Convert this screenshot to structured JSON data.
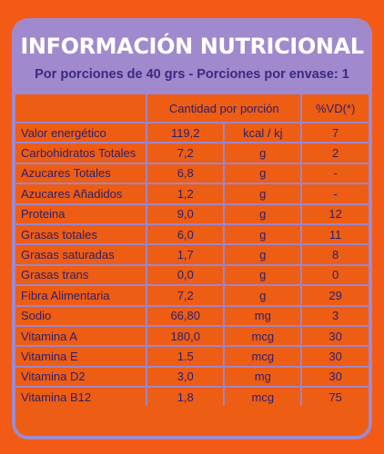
{
  "header": {
    "title": "INFORMACIÓN NUTRICIONAL",
    "subtitle": "Por porciones de 40 grs - Porciones por envase: 1"
  },
  "table": {
    "col_cantidad": "Cantidad por porción",
    "col_vd": "%VD(*)",
    "rows": [
      {
        "name": "Valor energético",
        "value": "119,2",
        "unit": "kcal / kj",
        "vd": "7"
      },
      {
        "name": "Carbohidratos Totales",
        "value": "7,2",
        "unit": "g",
        "vd": "2"
      },
      {
        "name": "Azucares Totales",
        "value": "6,8",
        "unit": "g",
        "vd": "-"
      },
      {
        "name": "Azucares Añadidos",
        "value": "1,2",
        "unit": "g",
        "vd": "-"
      },
      {
        "name": "Proteina",
        "value": "9,0",
        "unit": "g",
        "vd": "12"
      },
      {
        "name": "Grasas totales",
        "value": "6,0",
        "unit": "g",
        "vd": "11"
      },
      {
        "name": "Grasas saturadas",
        "value": "1,7",
        "unit": "g",
        "vd": "8"
      },
      {
        "name": "Grasas trans",
        "value": "0,0",
        "unit": "g",
        "vd": "0"
      },
      {
        "name": "Fibra Alimentaria",
        "value": "7,2",
        "unit": "g",
        "vd": "29"
      },
      {
        "name": "Sodio",
        "value": "66,80",
        "unit": "mg",
        "vd": "3"
      },
      {
        "name": "Vitamina A",
        "value": "180,0",
        "unit": "mcg",
        "vd": "30"
      },
      {
        "name": "Vitamina E",
        "value": "1.5",
        "unit": "mcg",
        "vd": "30"
      },
      {
        "name": "Vitamina D2",
        "value": "3,0",
        "unit": "mg",
        "vd": "30"
      },
      {
        "name": "Vitamina B12",
        "value": "1,8",
        "unit": "mcg",
        "vd": "75"
      }
    ]
  },
  "colors": {
    "background": "#f25a16",
    "panel": "#a089cc",
    "text": "#2b1f6b",
    "subtitle": "#3a2a82"
  }
}
